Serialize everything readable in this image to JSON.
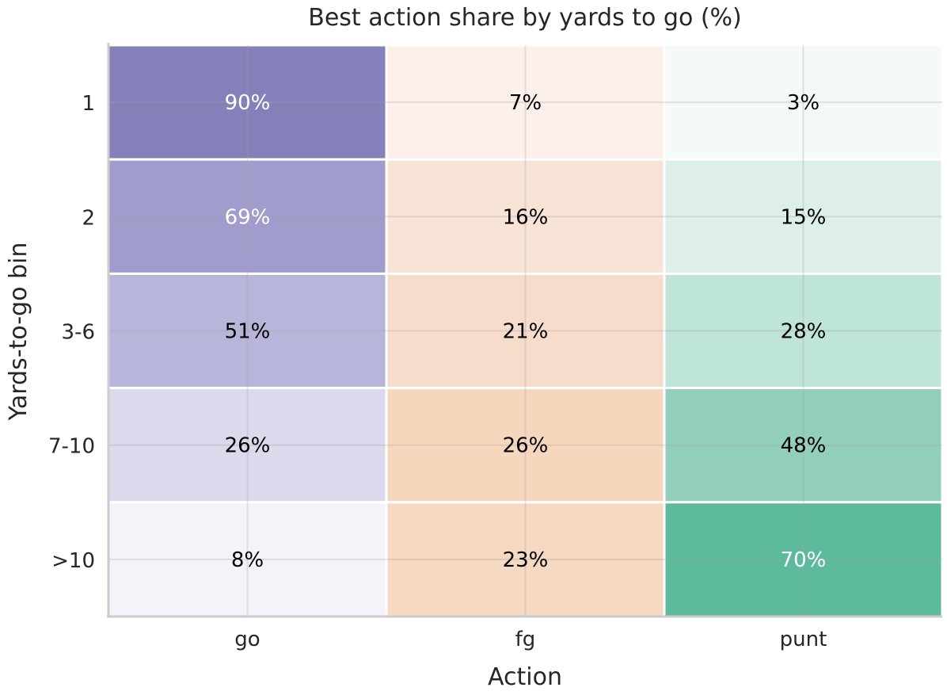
{
  "chart_data": {
    "type": "heatmap",
    "title": "Best action share by yards to go (%)",
    "xlabel": "Action",
    "ylabel": "Yards-to-go bin",
    "x_categories": [
      "go",
      "fg",
      "punt"
    ],
    "y_categories": [
      "1",
      "2",
      "3-6",
      "7-10",
      ">10"
    ],
    "values": [
      [
        90,
        7,
        3
      ],
      [
        69,
        16,
        15
      ],
      [
        51,
        21,
        28
      ],
      [
        26,
        26,
        48
      ],
      [
        8,
        23,
        70
      ]
    ],
    "cell_labels": [
      [
        "90%",
        "7%",
        "3%"
      ],
      [
        "69%",
        "16%",
        "15%"
      ],
      [
        "51%",
        "21%",
        "28%"
      ],
      [
        "26%",
        "26%",
        "48%"
      ],
      [
        "8%",
        "23%",
        "70%"
      ]
    ],
    "cell_colors": [
      [
        "#8481ba",
        "#fbf0ea",
        "#f5f9f8"
      ],
      [
        "#a09ccb",
        "#f8e4d7",
        "#ddefe8"
      ],
      [
        "#b7b5d9",
        "#f7dccb",
        "#bfe4d9"
      ],
      [
        "#dcd9ec",
        "#f5d7be",
        "#92cfbd"
      ],
      [
        "#f4f3f9",
        "#f5d9c3",
        "#5dba9d"
      ]
    ],
    "label_colors": [
      [
        "#ffffff",
        "#000000",
        "#000000"
      ],
      [
        "#ffffff",
        "#000000",
        "#000000"
      ],
      [
        "#000000",
        "#000000",
        "#000000"
      ],
      [
        "#000000",
        "#000000",
        "#000000"
      ],
      [
        "#000000",
        "#000000",
        "#ffffff"
      ]
    ],
    "grid": true
  }
}
